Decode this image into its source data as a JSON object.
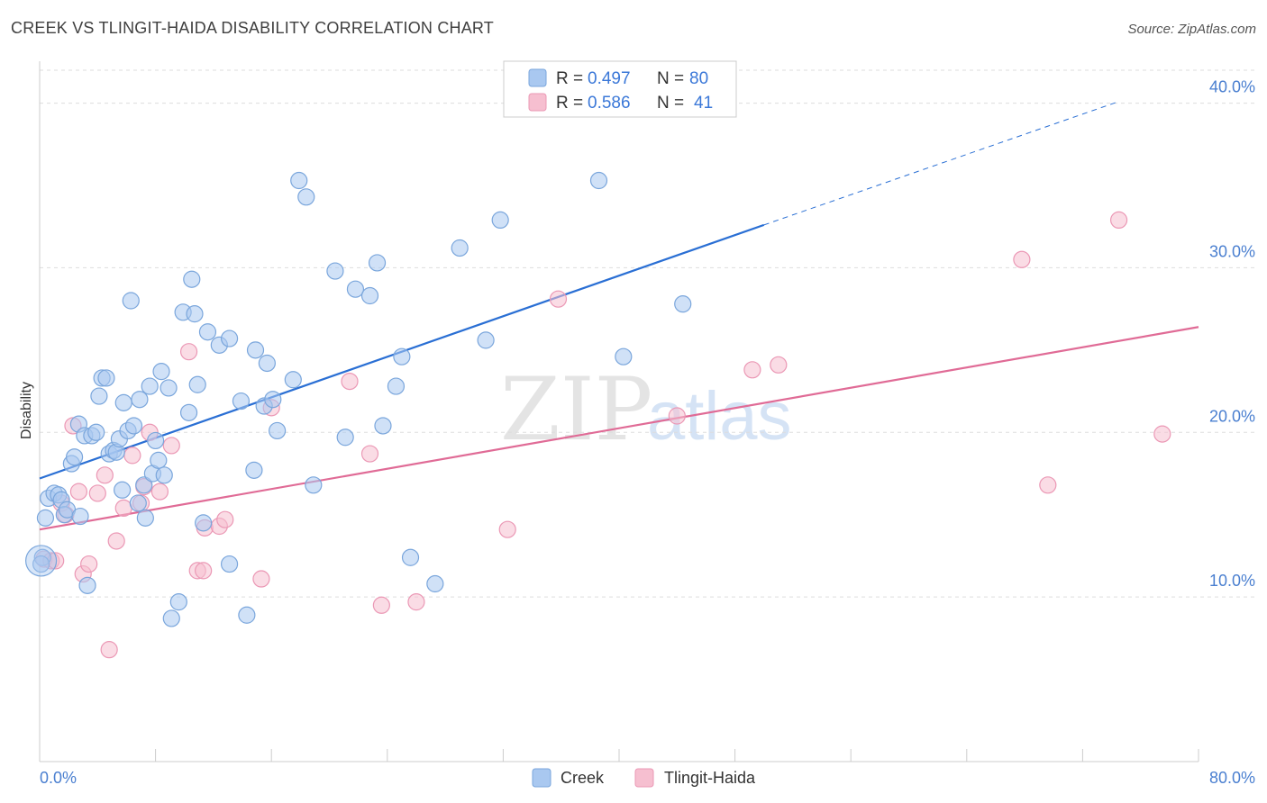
{
  "header": {
    "title": "CREEK VS TLINGIT-HAIDA DISABILITY CORRELATION CHART",
    "source": "Source: ZipAtlas.com"
  },
  "watermark": {
    "zip": "ZIP",
    "atlas": "atlas"
  },
  "colors": {
    "creek_fill": "#a9c8f0",
    "creek_stroke": "#7aa6dc",
    "creek_line": "#2a6fd4",
    "tlingit_fill": "#f6bfd0",
    "tlingit_stroke": "#eb98b5",
    "tlingit_line": "#e06b96",
    "axis_label": "#4a7fd0",
    "grid": "#dddddd"
  },
  "legend_top": {
    "rows": [
      {
        "r_label": "R = ",
        "r_value": "0.497",
        "n_label": "N = ",
        "n_value": "80"
      },
      {
        "r_label": "R = ",
        "r_value": "0.586",
        "n_label": "N = ",
        "n_value": "41"
      }
    ]
  },
  "legend_bottom": {
    "items": [
      "Creek",
      "Tlingit-Haida"
    ]
  },
  "chart_data": {
    "type": "scatter",
    "title": "CREEK VS TLINGIT-HAIDA DISABILITY CORRELATION CHART",
    "xlabel": "",
    "ylabel": "Disability",
    "xlim": [
      0,
      80
    ],
    "ylim": [
      0,
      42
    ],
    "x_tick_labels": [
      "0.0%",
      "80.0%"
    ],
    "y_ticks": [
      10,
      20,
      30,
      40
    ],
    "y_tick_labels": [
      "10.0%",
      "20.0%",
      "30.0%",
      "40.0%"
    ],
    "grid": true,
    "legend_position": "top-center",
    "series": [
      {
        "name": "Creek",
        "r": 0.497,
        "n": 80,
        "trend": {
          "x": [
            0,
            50
          ],
          "y": [
            17.2,
            32.6
          ],
          "dashed_extension_to": [
            74.5,
            40.1
          ]
        },
        "points": [
          [
            0.2,
            12.4
          ],
          [
            0.4,
            14.8
          ],
          [
            0.6,
            16.0
          ],
          [
            1.0,
            16.3
          ],
          [
            1.3,
            16.2
          ],
          [
            1.5,
            15.9
          ],
          [
            1.7,
            15.0
          ],
          [
            1.9,
            15.3
          ],
          [
            2.2,
            18.1
          ],
          [
            2.4,
            18.5
          ],
          [
            2.7,
            20.5
          ],
          [
            2.8,
            14.9
          ],
          [
            3.1,
            19.8
          ],
          [
            3.3,
            10.7
          ],
          [
            3.6,
            19.8
          ],
          [
            3.9,
            20.0
          ],
          [
            4.1,
            22.2
          ],
          [
            4.3,
            23.3
          ],
          [
            4.6,
            23.3
          ],
          [
            4.8,
            18.7
          ],
          [
            5.1,
            18.9
          ],
          [
            5.3,
            18.8
          ],
          [
            5.5,
            19.6
          ],
          [
            5.7,
            16.5
          ],
          [
            5.8,
            21.8
          ],
          [
            6.1,
            20.1
          ],
          [
            6.3,
            28.0
          ],
          [
            6.5,
            20.4
          ],
          [
            6.8,
            15.7
          ],
          [
            6.9,
            22.0
          ],
          [
            7.2,
            16.8
          ],
          [
            7.3,
            14.8
          ],
          [
            7.6,
            22.8
          ],
          [
            7.8,
            17.5
          ],
          [
            8.0,
            19.5
          ],
          [
            8.2,
            18.3
          ],
          [
            8.4,
            23.7
          ],
          [
            8.6,
            17.4
          ],
          [
            8.9,
            22.7
          ],
          [
            9.1,
            8.7
          ],
          [
            9.6,
            9.7
          ],
          [
            9.9,
            27.3
          ],
          [
            10.3,
            21.2
          ],
          [
            10.5,
            29.3
          ],
          [
            10.7,
            27.2
          ],
          [
            10.9,
            22.9
          ],
          [
            11.3,
            14.5
          ],
          [
            11.6,
            26.1
          ],
          [
            12.4,
            25.3
          ],
          [
            13.1,
            25.7
          ],
          [
            13.1,
            12.0
          ],
          [
            13.9,
            21.9
          ],
          [
            14.3,
            8.9
          ],
          [
            14.8,
            17.7
          ],
          [
            14.9,
            25.0
          ],
          [
            15.5,
            21.6
          ],
          [
            15.7,
            24.2
          ],
          [
            16.1,
            22.0
          ],
          [
            16.4,
            20.1
          ],
          [
            17.5,
            23.2
          ],
          [
            17.9,
            35.3
          ],
          [
            18.4,
            34.3
          ],
          [
            18.9,
            16.8
          ],
          [
            20.4,
            29.8
          ],
          [
            21.1,
            19.7
          ],
          [
            21.8,
            28.7
          ],
          [
            22.8,
            28.3
          ],
          [
            23.3,
            30.3
          ],
          [
            23.7,
            20.4
          ],
          [
            24.6,
            22.8
          ],
          [
            25.0,
            24.6
          ],
          [
            25.6,
            12.4
          ],
          [
            27.3,
            10.8
          ],
          [
            29.0,
            31.2
          ],
          [
            30.8,
            25.6
          ],
          [
            31.8,
            32.9
          ],
          [
            38.6,
            35.3
          ],
          [
            40.3,
            24.6
          ],
          [
            44.4,
            27.8
          ],
          [
            0.1,
            12.0
          ]
        ]
      },
      {
        "name": "Tlingit-Haida",
        "r": 0.586,
        "n": 41,
        "trend": {
          "x": [
            0,
            80
          ],
          "y": [
            14.1,
            26.4
          ]
        },
        "points": [
          [
            0.3,
            12.3
          ],
          [
            0.8,
            12.2
          ],
          [
            1.1,
            12.2
          ],
          [
            1.5,
            15.7
          ],
          [
            1.8,
            15.0
          ],
          [
            2.3,
            20.4
          ],
          [
            2.7,
            16.4
          ],
          [
            3.0,
            11.4
          ],
          [
            3.4,
            12.0
          ],
          [
            4.0,
            16.3
          ],
          [
            4.5,
            17.4
          ],
          [
            4.8,
            6.8
          ],
          [
            5.3,
            13.4
          ],
          [
            5.8,
            15.4
          ],
          [
            6.4,
            18.6
          ],
          [
            7.0,
            15.7
          ],
          [
            7.2,
            16.7
          ],
          [
            7.6,
            20.0
          ],
          [
            8.3,
            16.4
          ],
          [
            9.1,
            19.2
          ],
          [
            10.3,
            24.9
          ],
          [
            10.9,
            11.6
          ],
          [
            11.3,
            11.6
          ],
          [
            11.4,
            14.2
          ],
          [
            12.4,
            14.3
          ],
          [
            12.8,
            14.7
          ],
          [
            15.3,
            11.1
          ],
          [
            16.0,
            21.5
          ],
          [
            21.4,
            23.1
          ],
          [
            22.8,
            18.7
          ],
          [
            23.6,
            9.5
          ],
          [
            26.0,
            9.7
          ],
          [
            32.3,
            14.1
          ],
          [
            35.8,
            28.1
          ],
          [
            44.0,
            21.0
          ],
          [
            49.2,
            23.8
          ],
          [
            51.0,
            24.1
          ],
          [
            67.8,
            30.5
          ],
          [
            69.6,
            16.8
          ],
          [
            74.5,
            32.9
          ],
          [
            77.5,
            19.9
          ]
        ]
      }
    ]
  }
}
